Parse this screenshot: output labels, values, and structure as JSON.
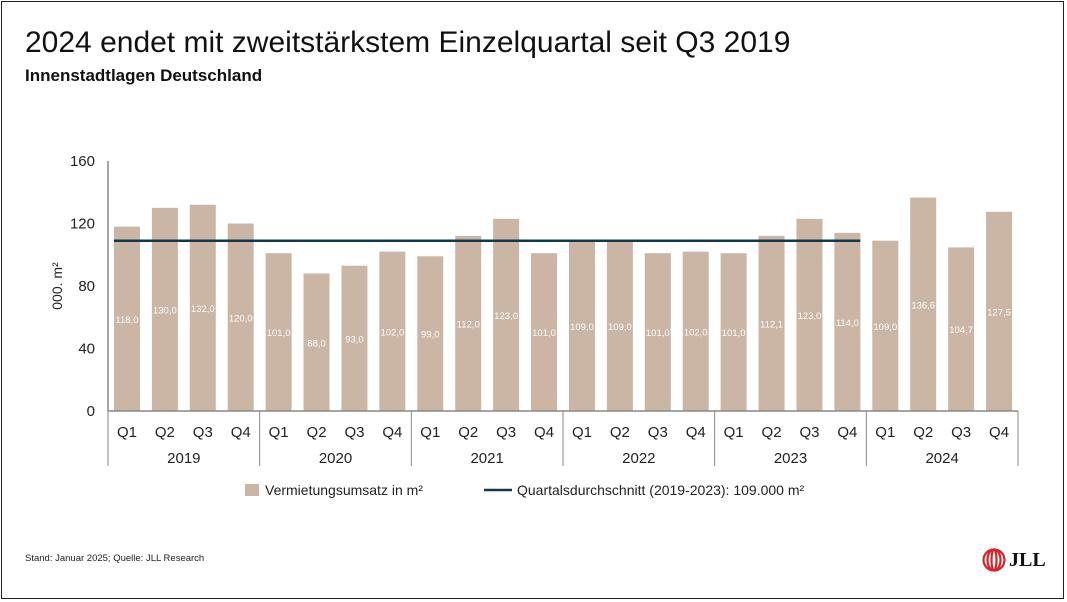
{
  "title": "2024 endet mit zweitstärkstem Einzelquartal seit Q3 2019",
  "subtitle": "Innenstadtlagen Deutschland",
  "source": "Stand: Januar 2025; Quelle: JLL Research",
  "logo": "JLL",
  "colors": {
    "bar": "#cbb5a5",
    "line": "#0f3a4a",
    "logo_red": "#d8232a"
  },
  "chart_data": {
    "type": "bar",
    "title": "2024 endet mit zweitstärkstem Einzelquartal seit Q3 2019",
    "ylabel": "000. m²",
    "ylim": [
      0,
      160
    ],
    "yticks": [
      "0",
      "40",
      "80",
      "120",
      "160"
    ],
    "quarters": [
      "Q1",
      "Q2",
      "Q3",
      "Q4"
    ],
    "years": [
      "2019",
      "2020",
      "2021",
      "2022",
      "2023",
      "2024"
    ],
    "series": [
      {
        "name": "Vermietungsumsatz in m²",
        "type": "bar",
        "values": [
          118.0,
          130.0,
          132.0,
          120.0,
          101.0,
          88.0,
          93.0,
          102.0,
          99.0,
          112.0,
          123.0,
          101.0,
          109.0,
          109.0,
          101.0,
          102.0,
          101.0,
          112.1,
          123.0,
          114.0,
          109.0,
          136.6,
          104.7,
          127.5
        ],
        "labels": [
          "118,0",
          "130,0",
          "132,0",
          "120,0",
          "101,0",
          "88,0",
          "93,0",
          "102,0",
          "99,0",
          "112,0",
          "123,0",
          "101,0",
          "109,0",
          "109,0",
          "101,0",
          "102,0",
          "101,0",
          "112,1",
          "123,0",
          "114,0",
          "109,0",
          "136,6",
          "104,7",
          "127,5"
        ]
      },
      {
        "name": "Quartalsdurchschnitt (2019-2023): 109.000 m²",
        "type": "line",
        "value": 109.0,
        "span_quarters": 20
      }
    ],
    "legend_position": "bottom",
    "grid": false
  }
}
